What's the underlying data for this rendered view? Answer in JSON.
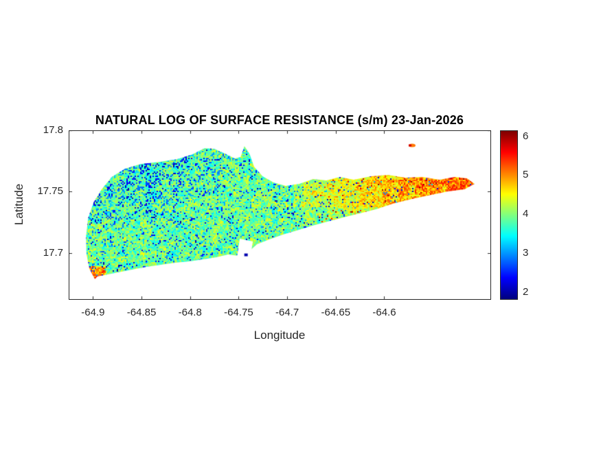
{
  "chart_data": {
    "type": "heatmap",
    "title": "NATURAL LOG OF SURFACE RESISTANCE (s/m) 23-Jan-2026",
    "xlabel": "Longitude",
    "ylabel": "Latitude",
    "xlim": [
      -64.925,
      -64.49
    ],
    "ylim": [
      17.662,
      17.8
    ],
    "xticks": [
      -64.9,
      -64.85,
      -64.8,
      -64.75,
      -64.7,
      -64.65,
      -64.6
    ],
    "yticks": [
      17.8,
      17.75,
      17.7
    ],
    "grid": false,
    "legend": "none",
    "colormap": "jet",
    "colorbar": {
      "position": "right",
      "clim": [
        1.8,
        6.15
      ],
      "ticks": [
        2,
        3,
        4,
        5,
        6
      ]
    },
    "value_regions": [
      {
        "area": "northwest",
        "ln_surface_resistance": "2.0-3.5",
        "appearance": "dense dark-blue speckles over cyan/green"
      },
      {
        "area": "central",
        "ln_surface_resistance": "3.2-4.3",
        "appearance": "green with scattered cyan and blue speckles"
      },
      {
        "area": "east",
        "ln_surface_resistance": "4.2-5.5",
        "appearance": "yellow-orange grading to orange-red toward the eastern tip with occasional dark-red specks"
      },
      {
        "area": "southwest-tip",
        "ln_surface_resistance": "4.5-5.8",
        "appearance": "small yellow/red pointed tail"
      }
    ],
    "island_outline_uv": [
      [
        0.062,
        0.879
      ],
      [
        0.049,
        0.818
      ],
      [
        0.042,
        0.729
      ],
      [
        0.041,
        0.628
      ],
      [
        0.046,
        0.518
      ],
      [
        0.059,
        0.425
      ],
      [
        0.078,
        0.348
      ],
      [
        0.102,
        0.275
      ],
      [
        0.133,
        0.227
      ],
      [
        0.171,
        0.198
      ],
      [
        0.215,
        0.186
      ],
      [
        0.257,
        0.17
      ],
      [
        0.293,
        0.142
      ],
      [
        0.322,
        0.105
      ],
      [
        0.345,
        0.109
      ],
      [
        0.367,
        0.134
      ],
      [
        0.393,
        0.166
      ],
      [
        0.407,
        0.158
      ],
      [
        0.416,
        0.093
      ],
      [
        0.428,
        0.138
      ],
      [
        0.439,
        0.215
      ],
      [
        0.459,
        0.271
      ],
      [
        0.485,
        0.308
      ],
      [
        0.514,
        0.328
      ],
      [
        0.546,
        0.316
      ],
      [
        0.579,
        0.287
      ],
      [
        0.61,
        0.296
      ],
      [
        0.642,
        0.275
      ],
      [
        0.675,
        0.291
      ],
      [
        0.715,
        0.271
      ],
      [
        0.756,
        0.263
      ],
      [
        0.797,
        0.279
      ],
      [
        0.837,
        0.275
      ],
      [
        0.878,
        0.291
      ],
      [
        0.914,
        0.275
      ],
      [
        0.943,
        0.283
      ],
      [
        0.961,
        0.316
      ],
      [
        0.937,
        0.348
      ],
      [
        0.898,
        0.36
      ],
      [
        0.859,
        0.381
      ],
      [
        0.813,
        0.405
      ],
      [
        0.767,
        0.433
      ],
      [
        0.728,
        0.466
      ],
      [
        0.689,
        0.49
      ],
      [
        0.65,
        0.514
      ],
      [
        0.613,
        0.538
      ],
      [
        0.577,
        0.563
      ],
      [
        0.54,
        0.591
      ],
      [
        0.507,
        0.615
      ],
      [
        0.475,
        0.644
      ],
      [
        0.446,
        0.672
      ],
      [
        0.426,
        0.717
      ],
      [
        0.403,
        0.741
      ],
      [
        0.377,
        0.733
      ],
      [
        0.35,
        0.749
      ],
      [
        0.319,
        0.761
      ],
      [
        0.286,
        0.773
      ],
      [
        0.252,
        0.781
      ],
      [
        0.218,
        0.794
      ],
      [
        0.184,
        0.806
      ],
      [
        0.15,
        0.822
      ],
      [
        0.117,
        0.838
      ],
      [
        0.085,
        0.854
      ],
      [
        0.068,
        0.862
      ]
    ],
    "features": {
      "white_notch_uv": [
        [
          0.405,
          0.64
        ],
        [
          0.436,
          0.656
        ],
        [
          0.429,
          0.765
        ],
        [
          0.399,
          0.742
        ]
      ],
      "dark_blue_spot": {
        "u": 0.419,
        "v": 0.735,
        "value": 2.0
      },
      "islet": {
        "u": 0.813,
        "v": 0.089,
        "value": 5.1
      }
    },
    "value_field": {
      "seed": 7,
      "base": 3.85,
      "noise_amp": 1.0,
      "blue_speckle_base_prob": 0.1,
      "nw_blue_extra_prob": 0.55,
      "east_warm_gain": 1.05
    }
  }
}
